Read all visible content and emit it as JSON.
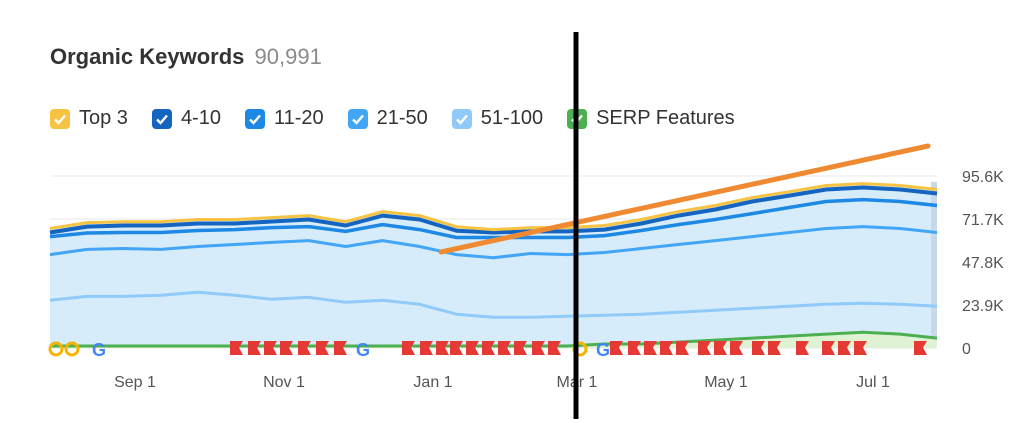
{
  "header": {
    "title": "Organic Keywords",
    "count": "90,991"
  },
  "legend": [
    {
      "label": "Top 3",
      "color": "#f6c343"
    },
    {
      "label": "4-10",
      "color": "#1565c0"
    },
    {
      "label": "11-20",
      "color": "#1e88e5"
    },
    {
      "label": "21-50",
      "color": "#42a5f5"
    },
    {
      "label": "51-100",
      "color": "#90caf9"
    },
    {
      "label": "SERP Features",
      "color": "#4caf50"
    }
  ],
  "chart_data": {
    "type": "area",
    "y_ticks": [
      "95.6K",
      "71.7K",
      "47.8K",
      "23.9K",
      "0"
    ],
    "ylim": [
      0,
      95600
    ],
    "x_ticks": [
      "Sep 1",
      "Nov 1",
      "Jan 1",
      "Mar 1",
      "May 1",
      "Jul 1"
    ],
    "grid": true,
    "series": [
      {
        "name": "Top 3",
        "values": [
          66400,
          69700,
          70200,
          70200,
          71400,
          71400,
          72500,
          73600,
          70200,
          75800,
          73600,
          67400,
          65800,
          66900,
          66900,
          68100,
          71400,
          75800,
          79200,
          83600,
          86900,
          90300,
          91400,
          90300,
          88100
        ]
      },
      {
        "name": "4-10",
        "values": [
          64200,
          67500,
          68100,
          68100,
          69200,
          69200,
          70300,
          71400,
          68100,
          73600,
          71400,
          65200,
          64200,
          64800,
          64800,
          65800,
          69200,
          73600,
          77000,
          81400,
          84700,
          88100,
          89200,
          88100,
          85900
        ]
      },
      {
        "name": "11-20",
        "values": [
          61900,
          63900,
          64200,
          64200,
          65300,
          65800,
          66900,
          67500,
          64800,
          68600,
          65800,
          61400,
          61400,
          61400,
          61400,
          62500,
          65300,
          68600,
          71400,
          74700,
          78100,
          81400,
          82500,
          81400,
          79200
        ]
      },
      {
        "name": "21-50",
        "values": [
          51900,
          54800,
          55300,
          54800,
          56400,
          57500,
          58700,
          59700,
          56400,
          59700,
          56400,
          51900,
          50200,
          52500,
          51900,
          53100,
          55300,
          57500,
          59700,
          61900,
          64200,
          66400,
          67500,
          66400,
          64200
        ]
      },
      {
        "name": "51-100",
        "values": [
          26500,
          28700,
          28700,
          29300,
          31000,
          29300,
          27100,
          28200,
          25400,
          26500,
          24300,
          18800,
          17100,
          17100,
          17700,
          18200,
          18800,
          19900,
          21000,
          22100,
          23200,
          24300,
          24900,
          24300,
          23200
        ]
      },
      {
        "name": "SERP Features",
        "values": [
          1100,
          1100,
          1100,
          1100,
          1100,
          1100,
          1100,
          1100,
          1100,
          1100,
          1100,
          1100,
          1100,
          1100,
          1100,
          2200,
          2200,
          3300,
          4400,
          5500,
          6600,
          7700,
          8800,
          7700,
          5500
        ]
      }
    ],
    "colors": {
      "fill": "#d6ecfb",
      "top3": "#f6c343",
      "line_4_10": "#1565c0",
      "line_11_20": "#1e88e5",
      "line_21_50": "#42a5f5",
      "line_51_100": "#90caf9",
      "serp": "#4caf50",
      "serp_fill": "#dff3d4",
      "marker_red": "#e53935",
      "annotation_line": "#f08a32"
    }
  }
}
